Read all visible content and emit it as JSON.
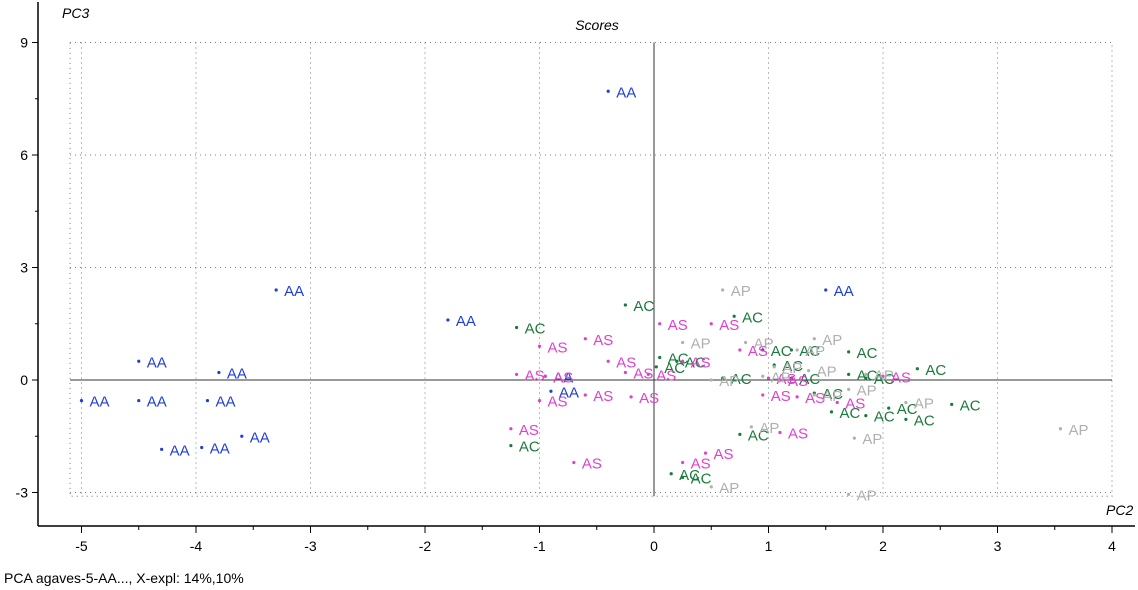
{
  "chart_data": {
    "type": "scatter",
    "title": "Scores",
    "xlabel": "PC2",
    "ylabel": "PC3",
    "xlim": [
      -5.1,
      4.0
    ],
    "ylim": [
      -3.1,
      9.0
    ],
    "x_ticks": [
      "-5",
      "-4",
      "-3",
      "-2",
      "-1",
      "0",
      "1",
      "2",
      "3",
      "4"
    ],
    "y_ticks": [
      "-3",
      "0",
      "3",
      "6",
      "9"
    ],
    "grid": true,
    "colors": {
      "AA": "#1f3fd6",
      "AC": "#1a7a3a",
      "AS": "#e040d0",
      "AP": "#b0b0b0"
    },
    "series": [
      {
        "name": "AA",
        "points": [
          [
            -0.4,
            7.7
          ],
          [
            -3.3,
            2.4
          ],
          [
            -1.8,
            1.6
          ],
          [
            1.5,
            2.4
          ],
          [
            -4.5,
            0.5
          ],
          [
            -3.8,
            0.2
          ],
          [
            -5.0,
            -0.55
          ],
          [
            -4.5,
            -0.55
          ],
          [
            -3.9,
            -0.55
          ],
          [
            -4.3,
            -1.85
          ],
          [
            -3.95,
            -1.8
          ],
          [
            -3.6,
            -1.5
          ],
          [
            -0.95,
            0.1
          ],
          [
            -0.9,
            -0.3
          ]
        ]
      },
      {
        "name": "AC",
        "points": [
          [
            -0.25,
            2.0
          ],
          [
            -1.2,
            1.4
          ],
          [
            0.7,
            1.7
          ],
          [
            0.05,
            0.6
          ],
          [
            0.02,
            0.35
          ],
          [
            0.2,
            0.5
          ],
          [
            0.95,
            0.8
          ],
          [
            1.2,
            0.8
          ],
          [
            1.05,
            0.4
          ],
          [
            0.6,
            0.05
          ],
          [
            1.2,
            0.05
          ],
          [
            1.7,
            0.75
          ],
          [
            1.7,
            0.15
          ],
          [
            1.85,
            0.05
          ],
          [
            2.3,
            0.3
          ],
          [
            1.4,
            -0.35
          ],
          [
            1.55,
            -0.85
          ],
          [
            1.85,
            -0.95
          ],
          [
            2.2,
            -1.05
          ],
          [
            2.05,
            -0.75
          ],
          [
            2.6,
            -0.65
          ],
          [
            0.75,
            -1.45
          ],
          [
            -1.25,
            -1.75
          ],
          [
            0.15,
            -2.5
          ],
          [
            0.25,
            -2.6
          ]
        ]
      },
      {
        "name": "AS",
        "points": [
          [
            -0.6,
            1.1
          ],
          [
            -1.0,
            0.9
          ],
          [
            0.05,
            1.5
          ],
          [
            0.5,
            1.5
          ],
          [
            -0.4,
            0.5
          ],
          [
            -0.25,
            0.2
          ],
          [
            -1.2,
            0.15
          ],
          [
            -0.95,
            0.1
          ],
          [
            -0.05,
            0.15
          ],
          [
            0.25,
            0.5
          ],
          [
            0.75,
            0.8
          ],
          [
            1.0,
            0.05
          ],
          [
            1.1,
            0.0
          ],
          [
            0.95,
            -0.4
          ],
          [
            1.25,
            -0.45
          ],
          [
            1.6,
            -0.6
          ],
          [
            2.0,
            0.1
          ],
          [
            -0.6,
            -0.4
          ],
          [
            -0.2,
            -0.45
          ],
          [
            -1.0,
            -0.55
          ],
          [
            -1.25,
            -1.3
          ],
          [
            -0.7,
            -2.2
          ],
          [
            0.25,
            -2.2
          ],
          [
            0.45,
            -1.95
          ],
          [
            1.1,
            -1.4
          ]
        ]
      },
      {
        "name": "AP",
        "points": [
          [
            0.6,
            2.4
          ],
          [
            0.25,
            1.0
          ],
          [
            0.8,
            1.0
          ],
          [
            1.4,
            1.1
          ],
          [
            1.25,
            0.8
          ],
          [
            1.05,
            0.35
          ],
          [
            0.5,
            0.0
          ],
          [
            0.95,
            0.1
          ],
          [
            1.35,
            0.25
          ],
          [
            1.85,
            0.15
          ],
          [
            1.7,
            -0.25
          ],
          [
            1.4,
            -0.4
          ],
          [
            2.2,
            -0.6
          ],
          [
            3.55,
            -1.3
          ],
          [
            0.85,
            -1.25
          ],
          [
            1.75,
            -1.55
          ],
          [
            0.5,
            -2.85
          ],
          [
            1.7,
            -3.05
          ]
        ]
      }
    ]
  },
  "footer": {
    "caption": "PCA agaves-5-AA..., X-expl: 14%,10%"
  }
}
